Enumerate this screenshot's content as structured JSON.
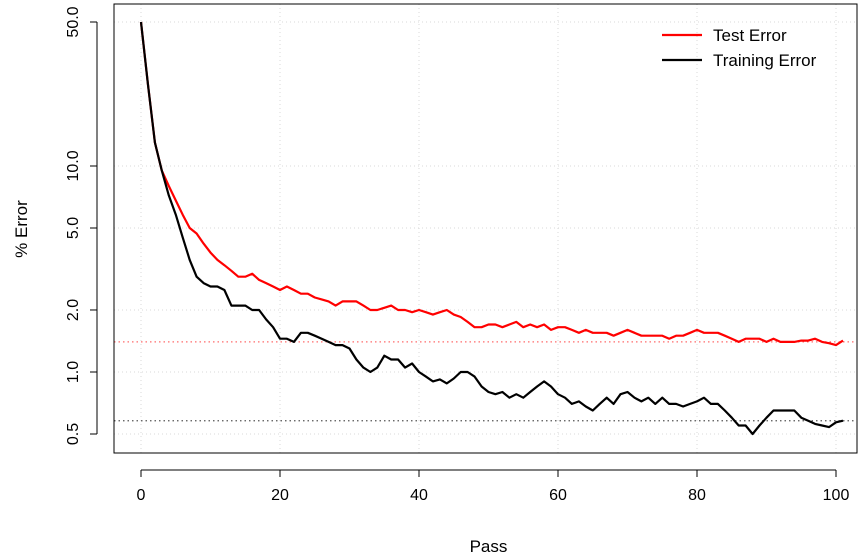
{
  "chart_data": {
    "type": "line",
    "xlabel": "Pass",
    "ylabel": "% Error",
    "y_scale": "log",
    "xlim": [
      0,
      101
    ],
    "ylim": [
      0.4,
      60
    ],
    "x_ticks": [
      0,
      20,
      40,
      60,
      80,
      100
    ],
    "x_tick_labels": [
      "0",
      "20",
      "40",
      "60",
      "80",
      "100"
    ],
    "y_ticks": [
      0.5,
      1.0,
      2.0,
      5.0,
      10.0,
      50.0
    ],
    "y_tick_labels": [
      "0.5",
      "1.0",
      "2.0",
      "5.0",
      "10.0",
      "50.0"
    ],
    "grid": true,
    "legend_position": "top-right",
    "x": [
      0,
      1,
      2,
      3,
      4,
      5,
      6,
      7,
      8,
      9,
      10,
      11,
      12,
      13,
      14,
      15,
      16,
      17,
      18,
      19,
      20,
      21,
      22,
      23,
      24,
      25,
      26,
      27,
      28,
      29,
      30,
      31,
      32,
      33,
      34,
      35,
      36,
      37,
      38,
      39,
      40,
      41,
      42,
      43,
      44,
      45,
      46,
      47,
      48,
      49,
      50,
      51,
      52,
      53,
      54,
      55,
      56,
      57,
      58,
      59,
      60,
      61,
      62,
      63,
      64,
      65,
      66,
      67,
      68,
      69,
      70,
      71,
      72,
      73,
      74,
      75,
      76,
      77,
      78,
      79,
      80,
      81,
      82,
      83,
      84,
      85,
      86,
      87,
      88,
      89,
      90,
      91,
      92,
      93,
      94,
      95,
      96,
      97,
      98,
      99,
      100,
      101
    ],
    "series": [
      {
        "name": "Test Error",
        "color": "#ff0000",
        "values": [
          50,
          25,
          13,
          9.5,
          8,
          6.8,
          5.8,
          5,
          4.7,
          4.2,
          3.8,
          3.5,
          3.3,
          3.1,
          2.9,
          2.9,
          3,
          2.8,
          2.7,
          2.6,
          2.5,
          2.6,
          2.5,
          2.4,
          2.4,
          2.3,
          2.25,
          2.2,
          2.1,
          2.2,
          2.2,
          2.2,
          2.1,
          2.0,
          2.0,
          2.05,
          2.1,
          2.0,
          2.0,
          1.95,
          2.0,
          1.95,
          1.9,
          1.95,
          2.0,
          1.9,
          1.85,
          1.75,
          1.65,
          1.65,
          1.7,
          1.7,
          1.65,
          1.7,
          1.75,
          1.65,
          1.7,
          1.65,
          1.7,
          1.6,
          1.65,
          1.65,
          1.6,
          1.55,
          1.6,
          1.55,
          1.55,
          1.55,
          1.5,
          1.55,
          1.6,
          1.55,
          1.5,
          1.5,
          1.5,
          1.5,
          1.45,
          1.5,
          1.5,
          1.55,
          1.6,
          1.55,
          1.55,
          1.55,
          1.5,
          1.45,
          1.4,
          1.45,
          1.45,
          1.45,
          1.4,
          1.45,
          1.4,
          1.4,
          1.4,
          1.42,
          1.42,
          1.45,
          1.4,
          1.38,
          1.35,
          1.42
        ]
      },
      {
        "name": "Training Error",
        "color": "#000000",
        "values": [
          50,
          25,
          13,
          9.5,
          7.2,
          5.8,
          4.5,
          3.5,
          2.9,
          2.7,
          2.6,
          2.6,
          2.5,
          2.1,
          2.1,
          2.1,
          2.0,
          2.0,
          1.8,
          1.65,
          1.45,
          1.45,
          1.4,
          1.55,
          1.55,
          1.5,
          1.45,
          1.4,
          1.35,
          1.35,
          1.3,
          1.15,
          1.05,
          1.0,
          1.05,
          1.2,
          1.15,
          1.15,
          1.05,
          1.1,
          1.0,
          0.95,
          0.9,
          0.92,
          0.88,
          0.93,
          1.0,
          1.0,
          0.95,
          0.85,
          0.8,
          0.78,
          0.8,
          0.75,
          0.78,
          0.75,
          0.8,
          0.85,
          0.9,
          0.85,
          0.78,
          0.75,
          0.7,
          0.72,
          0.68,
          0.65,
          0.7,
          0.75,
          0.7,
          0.78,
          0.8,
          0.75,
          0.72,
          0.75,
          0.7,
          0.75,
          0.7,
          0.7,
          0.68,
          0.7,
          0.72,
          0.75,
          0.7,
          0.7,
          0.65,
          0.6,
          0.55,
          0.55,
          0.5,
          0.55,
          0.6,
          0.65,
          0.65,
          0.65,
          0.65,
          0.6,
          0.58,
          0.56,
          0.55,
          0.54,
          0.57,
          0.58
        ]
      }
    ],
    "reference_lines": [
      {
        "y": 1.4,
        "color": "#ff6b6b",
        "style": "dotted"
      },
      {
        "y": 0.58,
        "color": "#555555",
        "style": "dotted"
      }
    ]
  }
}
